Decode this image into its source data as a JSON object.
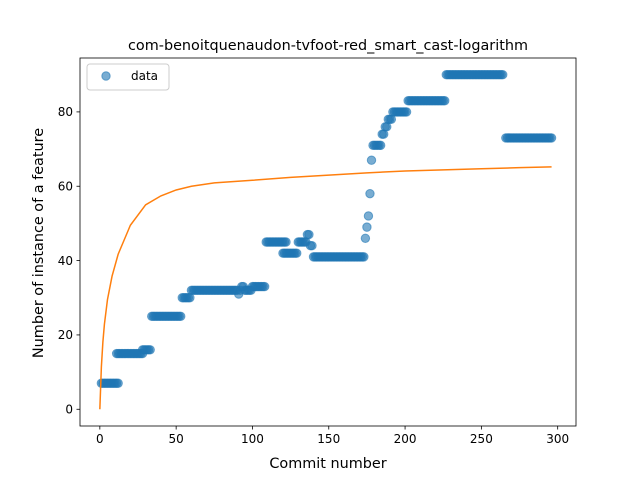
{
  "chart_data": {
    "type": "scatter",
    "title": "com-benoitquenaudon-tvfoot-red_smart_cast-logarithm",
    "xlabel": "Commit number",
    "ylabel": "Number of instance of a feature",
    "xlim": [
      -13,
      312
    ],
    "ylim": [
      -4.5,
      94.5
    ],
    "x_ticks": [
      0,
      50,
      100,
      150,
      200,
      250,
      300
    ],
    "y_ticks": [
      0,
      20,
      40,
      60,
      80
    ],
    "x_tick_labels": [
      "0",
      "50",
      "100",
      "150",
      "200",
      "250",
      "300"
    ],
    "y_tick_labels": [
      "0",
      "20",
      "40",
      "60",
      "80"
    ],
    "legend": {
      "position": "upper-left",
      "entries": [
        "data"
      ]
    },
    "grid": false,
    "colors": {
      "data": "#1f77b4",
      "fit": "#ff7f0e"
    },
    "series": [
      {
        "name": "data",
        "kind": "scatter",
        "points": [
          [
            1,
            7
          ],
          [
            2,
            7
          ],
          [
            3,
            7
          ],
          [
            4,
            7
          ],
          [
            5,
            7
          ],
          [
            6,
            7
          ],
          [
            7,
            7
          ],
          [
            8,
            7
          ],
          [
            9,
            7
          ],
          [
            10,
            7
          ],
          [
            11,
            7
          ],
          [
            12,
            7
          ],
          [
            11,
            15
          ],
          [
            12,
            15
          ],
          [
            13,
            15
          ],
          [
            14,
            15
          ],
          [
            15,
            15
          ],
          [
            16,
            15
          ],
          [
            17,
            15
          ],
          [
            18,
            15
          ],
          [
            19,
            15
          ],
          [
            20,
            15
          ],
          [
            21,
            15
          ],
          [
            22,
            15
          ],
          [
            23,
            15
          ],
          [
            24,
            15
          ],
          [
            25,
            15
          ],
          [
            26,
            15
          ],
          [
            27,
            15
          ],
          [
            28,
            15
          ],
          [
            28,
            16
          ],
          [
            29,
            16
          ],
          [
            30,
            16
          ],
          [
            31,
            16
          ],
          [
            32,
            16
          ],
          [
            33,
            16
          ],
          [
            34,
            25
          ],
          [
            35,
            25
          ],
          [
            36,
            25
          ],
          [
            37,
            25
          ],
          [
            38,
            25
          ],
          [
            39,
            25
          ],
          [
            40,
            25
          ],
          [
            41,
            25
          ],
          [
            42,
            25
          ],
          [
            43,
            25
          ],
          [
            44,
            25
          ],
          [
            45,
            25
          ],
          [
            46,
            25
          ],
          [
            47,
            25
          ],
          [
            48,
            25
          ],
          [
            49,
            25
          ],
          [
            50,
            25
          ],
          [
            51,
            25
          ],
          [
            52,
            25
          ],
          [
            53,
            25
          ],
          [
            54,
            30
          ],
          [
            55,
            30
          ],
          [
            56,
            30
          ],
          [
            57,
            30
          ],
          [
            58,
            30
          ],
          [
            59,
            30
          ],
          [
            60,
            32
          ],
          [
            61,
            32
          ],
          [
            62,
            32
          ],
          [
            63,
            32
          ],
          [
            64,
            32
          ],
          [
            65,
            32
          ],
          [
            66,
            32
          ],
          [
            67,
            32
          ],
          [
            68,
            32
          ],
          [
            69,
            32
          ],
          [
            70,
            32
          ],
          [
            71,
            32
          ],
          [
            72,
            32
          ],
          [
            73,
            32
          ],
          [
            74,
            32
          ],
          [
            75,
            32
          ],
          [
            76,
            32
          ],
          [
            77,
            32
          ],
          [
            78,
            32
          ],
          [
            79,
            32
          ],
          [
            80,
            32
          ],
          [
            81,
            32
          ],
          [
            82,
            32
          ],
          [
            83,
            32
          ],
          [
            84,
            32
          ],
          [
            85,
            32
          ],
          [
            86,
            32
          ],
          [
            87,
            32
          ],
          [
            88,
            32
          ],
          [
            89,
            32
          ],
          [
            90,
            32
          ],
          [
            91,
            31
          ],
          [
            92,
            32
          ],
          [
            93,
            33
          ],
          [
            94,
            33
          ],
          [
            95,
            32
          ],
          [
            96,
            32
          ],
          [
            97,
            32
          ],
          [
            98,
            32
          ],
          [
            99,
            32
          ],
          [
            100,
            33
          ],
          [
            101,
            33
          ],
          [
            102,
            33
          ],
          [
            103,
            33
          ],
          [
            104,
            33
          ],
          [
            105,
            33
          ],
          [
            106,
            33
          ],
          [
            107,
            33
          ],
          [
            108,
            33
          ],
          [
            109,
            45
          ],
          [
            110,
            45
          ],
          [
            111,
            45
          ],
          [
            112,
            45
          ],
          [
            113,
            45
          ],
          [
            114,
            45
          ],
          [
            115,
            45
          ],
          [
            116,
            45
          ],
          [
            117,
            45
          ],
          [
            118,
            45
          ],
          [
            119,
            45
          ],
          [
            120,
            45
          ],
          [
            121,
            45
          ],
          [
            122,
            45
          ],
          [
            120,
            42
          ],
          [
            121,
            42
          ],
          [
            122,
            42
          ],
          [
            123,
            42
          ],
          [
            124,
            42
          ],
          [
            125,
            42
          ],
          [
            126,
            42
          ],
          [
            127,
            42
          ],
          [
            128,
            42
          ],
          [
            129,
            42
          ],
          [
            130,
            45
          ],
          [
            131,
            45
          ],
          [
            132,
            45
          ],
          [
            133,
            45
          ],
          [
            134,
            45
          ],
          [
            135,
            45
          ],
          [
            136,
            47
          ],
          [
            137,
            47
          ],
          [
            138,
            44
          ],
          [
            139,
            44
          ],
          [
            140,
            41
          ],
          [
            141,
            41
          ],
          [
            142,
            41
          ],
          [
            143,
            41
          ],
          [
            144,
            41
          ],
          [
            145,
            41
          ],
          [
            146,
            41
          ],
          [
            147,
            41
          ],
          [
            148,
            41
          ],
          [
            149,
            41
          ],
          [
            150,
            41
          ],
          [
            151,
            41
          ],
          [
            152,
            41
          ],
          [
            153,
            41
          ],
          [
            154,
            41
          ],
          [
            155,
            41
          ],
          [
            156,
            41
          ],
          [
            157,
            41
          ],
          [
            158,
            41
          ],
          [
            159,
            41
          ],
          [
            160,
            41
          ],
          [
            161,
            41
          ],
          [
            162,
            41
          ],
          [
            163,
            41
          ],
          [
            164,
            41
          ],
          [
            165,
            41
          ],
          [
            166,
            41
          ],
          [
            167,
            41
          ],
          [
            168,
            41
          ],
          [
            169,
            41
          ],
          [
            170,
            41
          ],
          [
            171,
            41
          ],
          [
            172,
            41
          ],
          [
            173,
            41
          ],
          [
            174,
            46
          ],
          [
            175,
            49
          ],
          [
            176,
            52
          ],
          [
            177,
            58
          ],
          [
            178,
            67
          ],
          [
            179,
            71
          ],
          [
            180,
            71
          ],
          [
            181,
            71
          ],
          [
            182,
            71
          ],
          [
            183,
            71
          ],
          [
            184,
            71
          ],
          [
            185,
            74
          ],
          [
            186,
            74
          ],
          [
            187,
            76
          ],
          [
            188,
            76
          ],
          [
            189,
            78
          ],
          [
            190,
            78
          ],
          [
            191,
            78
          ],
          [
            192,
            80
          ],
          [
            193,
            80
          ],
          [
            194,
            80
          ],
          [
            195,
            80
          ],
          [
            196,
            80
          ],
          [
            197,
            80
          ],
          [
            198,
            80
          ],
          [
            199,
            80
          ],
          [
            200,
            80
          ],
          [
            201,
            80
          ],
          [
            202,
            83
          ],
          [
            203,
            83
          ],
          [
            204,
            83
          ],
          [
            205,
            83
          ],
          [
            206,
            83
          ],
          [
            207,
            83
          ],
          [
            208,
            83
          ],
          [
            209,
            83
          ],
          [
            210,
            83
          ],
          [
            211,
            83
          ],
          [
            212,
            83
          ],
          [
            213,
            83
          ],
          [
            214,
            83
          ],
          [
            215,
            83
          ],
          [
            216,
            83
          ],
          [
            217,
            83
          ],
          [
            218,
            83
          ],
          [
            219,
            83
          ],
          [
            220,
            83
          ],
          [
            221,
            83
          ],
          [
            222,
            83
          ],
          [
            223,
            83
          ],
          [
            224,
            83
          ],
          [
            225,
            83
          ],
          [
            226,
            83
          ],
          [
            227,
            90
          ],
          [
            228,
            90
          ],
          [
            229,
            90
          ],
          [
            230,
            90
          ],
          [
            231,
            90
          ],
          [
            232,
            90
          ],
          [
            233,
            90
          ],
          [
            234,
            90
          ],
          [
            235,
            90
          ],
          [
            236,
            90
          ],
          [
            237,
            90
          ],
          [
            238,
            90
          ],
          [
            239,
            90
          ],
          [
            240,
            90
          ],
          [
            241,
            90
          ],
          [
            242,
            90
          ],
          [
            243,
            90
          ],
          [
            244,
            90
          ],
          [
            245,
            90
          ],
          [
            246,
            90
          ],
          [
            247,
            90
          ],
          [
            248,
            90
          ],
          [
            249,
            90
          ],
          [
            250,
            90
          ],
          [
            251,
            90
          ],
          [
            252,
            90
          ],
          [
            253,
            90
          ],
          [
            254,
            90
          ],
          [
            255,
            90
          ],
          [
            256,
            90
          ],
          [
            257,
            90
          ],
          [
            258,
            90
          ],
          [
            259,
            90
          ],
          [
            260,
            90
          ],
          [
            261,
            90
          ],
          [
            262,
            90
          ],
          [
            263,
            90
          ],
          [
            264,
            90
          ],
          [
            266,
            73
          ],
          [
            267,
            73
          ],
          [
            268,
            73
          ],
          [
            269,
            73
          ],
          [
            270,
            73
          ],
          [
            271,
            73
          ],
          [
            272,
            73
          ],
          [
            273,
            73
          ],
          [
            274,
            73
          ],
          [
            275,
            73
          ],
          [
            276,
            73
          ],
          [
            277,
            73
          ],
          [
            278,
            73
          ],
          [
            279,
            73
          ],
          [
            280,
            73
          ],
          [
            281,
            73
          ],
          [
            282,
            73
          ],
          [
            283,
            73
          ],
          [
            284,
            73
          ],
          [
            285,
            73
          ],
          [
            286,
            73
          ],
          [
            287,
            73
          ],
          [
            288,
            73
          ],
          [
            289,
            73
          ],
          [
            290,
            73
          ],
          [
            291,
            73
          ],
          [
            292,
            73
          ],
          [
            293,
            73
          ],
          [
            294,
            73
          ],
          [
            295,
            73
          ],
          [
            296,
            73
          ]
        ]
      },
      {
        "kind": "line",
        "function": "log",
        "points": [
          [
            0,
            0
          ],
          [
            1,
            11.4
          ],
          [
            2,
            18.1
          ],
          [
            3,
            22.9
          ],
          [
            5,
            29.5
          ],
          [
            8,
            35.8
          ],
          [
            12,
            41.7
          ],
          [
            20,
            49.5
          ],
          [
            30,
            55.0
          ],
          [
            40,
            57.4
          ],
          [
            50,
            59.0
          ],
          [
            60,
            60.0
          ],
          [
            75,
            60.9
          ],
          [
            100,
            61.6
          ],
          [
            125,
            62.4
          ],
          [
            150,
            63.0
          ],
          [
            175,
            63.6
          ],
          [
            200,
            64.1
          ],
          [
            225,
            64.4
          ],
          [
            250,
            64.7
          ],
          [
            275,
            65.0
          ],
          [
            296,
            65.2
          ]
        ]
      }
    ]
  }
}
